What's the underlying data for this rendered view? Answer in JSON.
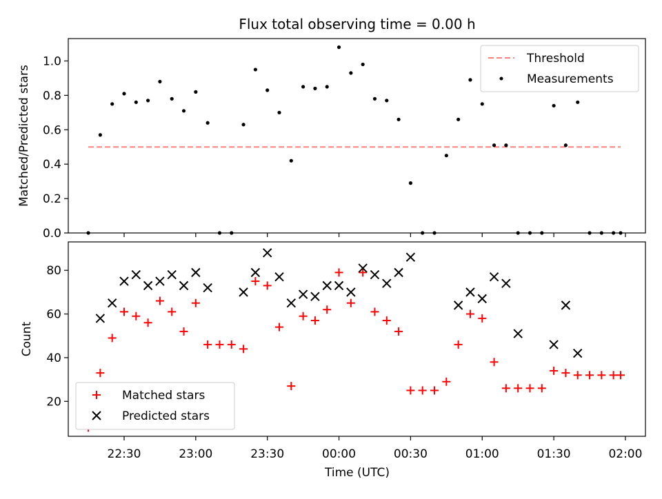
{
  "chart_data": [
    {
      "type": "scatter",
      "title": "Flux total observing time = 0.00 h",
      "xlabel": "",
      "ylabel": "Matched/Predicted stars",
      "ylim": [
        0,
        1.13
      ],
      "yticks": [
        "0.0",
        "0.2",
        "0.4",
        "0.6",
        "0.8",
        "1.0"
      ],
      "legend_position": "top-right",
      "threshold": {
        "name": "Threshold",
        "value": 0.5,
        "x_start": "22:15",
        "x_end": "01:58",
        "color": "#ff7f7f"
      },
      "series": [
        {
          "name": "Measurements",
          "color": "#000000",
          "x": [
            "22:15",
            "22:20",
            "22:25",
            "22:30",
            "22:35",
            "22:40",
            "22:45",
            "22:50",
            "22:55",
            "23:00",
            "23:05",
            "23:10",
            "23:15",
            "23:20",
            "23:25",
            "23:30",
            "23:35",
            "23:40",
            "23:45",
            "23:50",
            "23:55",
            "00:00",
            "00:05",
            "00:10",
            "00:15",
            "00:20",
            "00:25",
            "00:30",
            "00:35",
            "00:40",
            "00:45",
            "00:50",
            "00:55",
            "01:00",
            "01:05",
            "01:10",
            "01:15",
            "01:20",
            "01:25",
            "01:30",
            "01:35",
            "01:40",
            "01:45",
            "01:50",
            "01:55",
            "01:58"
          ],
          "y": [
            0.0,
            0.57,
            0.75,
            0.81,
            0.76,
            0.77,
            0.88,
            0.78,
            0.71,
            0.82,
            0.64,
            0.0,
            0.0,
            0.63,
            0.95,
            0.83,
            0.7,
            0.42,
            0.85,
            0.84,
            0.85,
            1.08,
            0.93,
            0.98,
            0.78,
            0.77,
            0.66,
            0.29,
            0.0,
            0.0,
            0.45,
            0.66,
            0.89,
            0.75,
            0.51,
            0.51,
            0.0,
            0.0,
            0.0,
            0.74,
            0.51,
            0.76,
            0.0,
            0.0,
            0.0,
            0.0
          ]
        }
      ]
    },
    {
      "type": "scatter",
      "title": "",
      "xlabel": "Time (UTC)",
      "ylabel": "Count",
      "ylim": [
        4,
        93
      ],
      "yticks": [
        "20",
        "40",
        "60",
        "80"
      ],
      "xticks": [
        "22:30",
        "23:00",
        "23:30",
        "00:00",
        "00:30",
        "01:00",
        "01:30",
        "02:00"
      ],
      "legend_position": "lower-left",
      "series": [
        {
          "name": "Matched stars",
          "marker": "+",
          "color": "#ff0000",
          "x": [
            "22:15",
            "22:20",
            "22:25",
            "22:30",
            "22:35",
            "22:40",
            "22:45",
            "22:50",
            "22:55",
            "23:00",
            "23:05",
            "23:10",
            "23:15",
            "23:20",
            "23:25",
            "23:30",
            "23:35",
            "23:40",
            "23:45",
            "23:50",
            "23:55",
            "00:00",
            "00:05",
            "00:10",
            "00:15",
            "00:20",
            "00:25",
            "00:30",
            "00:35",
            "00:40",
            "00:45",
            "00:50",
            "00:55",
            "01:00",
            "01:05",
            "01:10",
            "01:15",
            "01:20",
            "01:25",
            "01:30",
            "01:35",
            "01:40",
            "01:45",
            "01:50",
            "01:55",
            "01:58"
          ],
          "y": [
            8,
            33,
            49,
            61,
            59,
            56,
            66,
            61,
            52,
            65,
            46,
            46,
            46,
            44,
            75,
            73,
            54,
            27,
            59,
            57,
            62,
            79,
            65,
            79,
            61,
            57,
            52,
            25,
            25,
            25,
            29,
            46,
            60,
            58,
            38,
            26,
            26,
            26,
            26,
            34,
            33,
            32,
            32,
            32,
            32,
            32
          ]
        },
        {
          "name": "Predicted stars",
          "marker": "x",
          "color": "#000000",
          "x": [
            "22:20",
            "22:25",
            "22:30",
            "22:35",
            "22:40",
            "22:45",
            "22:50",
            "22:55",
            "23:00",
            "23:05",
            "23:20",
            "23:25",
            "23:30",
            "23:35",
            "23:40",
            "23:45",
            "23:50",
            "23:55",
            "00:00",
            "00:05",
            "00:10",
            "00:15",
            "00:20",
            "00:25",
            "00:30",
            "00:50",
            "00:55",
            "01:00",
            "01:05",
            "01:10",
            "01:15",
            "01:30",
            "01:35",
            "01:40"
          ],
          "y": [
            58,
            65,
            75,
            78,
            73,
            75,
            78,
            73,
            79,
            72,
            70,
            79,
            88,
            77,
            65,
            69,
            68,
            73,
            73,
            70,
            81,
            78,
            74,
            79,
            86,
            64,
            70,
            67,
            77,
            74,
            51,
            46,
            64,
            42
          ]
        }
      ]
    }
  ]
}
